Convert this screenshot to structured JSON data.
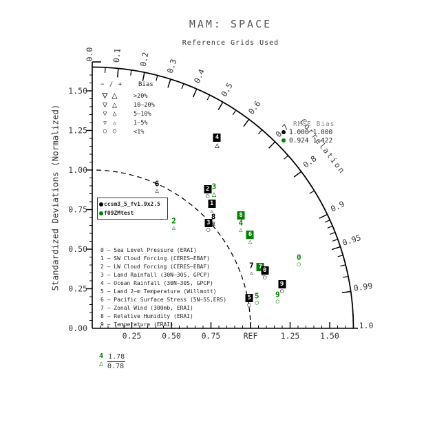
{
  "title": "MAM: SPACE",
  "subtitle": "Reference Grids Used",
  "colors": {
    "black_model": "#000000",
    "green_model": "#008000",
    "axis": "#000000",
    "gray_text": "#333333"
  },
  "y_axis": {
    "label": "Standardized Deviations (Normalized)",
    "tick_labels": [
      "0.00",
      "0.25",
      "0.50",
      "0.75",
      "1.00",
      "1.25",
      "1.50"
    ]
  },
  "x_axis": {
    "tick_labels": [
      "0.25",
      "0.50",
      "0.75",
      "REF",
      "1.25",
      "1.50"
    ]
  },
  "correlation_axis": {
    "label": "Correlation",
    "labels": [
      {
        "v": 0.0,
        "t": "0.0"
      },
      {
        "v": 0.1,
        "t": "0.1"
      },
      {
        "v": 0.2,
        "t": "0.2"
      },
      {
        "v": 0.3,
        "t": "0.3"
      },
      {
        "v": 0.4,
        "t": "0.4"
      },
      {
        "v": 0.5,
        "t": "0.5"
      },
      {
        "v": 0.6,
        "t": "0.6"
      },
      {
        "v": 0.7,
        "t": "0.7"
      },
      {
        "v": 0.8,
        "t": "0.8"
      },
      {
        "v": 0.9,
        "t": "0.9"
      },
      {
        "v": 0.95,
        "t": "0.95"
      },
      {
        "v": 0.99,
        "t": "0.99"
      },
      {
        "v": 1.0,
        "t": "1.0"
      }
    ],
    "minor_ticks": [
      0.05,
      0.15,
      0.25,
      0.35,
      0.45,
      0.55,
      0.65,
      0.75,
      0.85,
      0.91,
      0.92,
      0.93,
      0.94,
      0.96,
      0.97,
      0.98
    ]
  },
  "bias_legend": {
    "header_symbols": "− / +",
    "header_label": "Bias",
    "rows": [
      {
        "label": ">20%",
        "down": "▽",
        "up": "△",
        "size": 14
      },
      {
        "label": "10–20%",
        "down": "▽",
        "up": "△",
        "size": 12
      },
      {
        "label": "5–10%",
        "down": "▽",
        "up": "△",
        "size": 10
      },
      {
        "label": "1–5%",
        "down": "▽",
        "up": "△",
        "size": 8
      },
      {
        "label": "<1%",
        "down": "○",
        "up": "○",
        "size": 9
      }
    ]
  },
  "model_legend": [
    {
      "name": "ccsm3_5_fv1.9x2.5",
      "color": "#000000"
    },
    {
      "name": "f09ZMtest",
      "color": "#008000"
    }
  ],
  "stats": {
    "header": "RMSE  Bias",
    "rows": [
      {
        "rmse": "1.000",
        "bias": "1.000",
        "color": "#000000"
      },
      {
        "rmse": "0.924",
        "bias": "1.422",
        "color": "#008000"
      }
    ]
  },
  "variables": [
    "0 – Sea Level Pressure (ERAI)",
    "1 – SW Cloud Forcing (CERES–EBAF)",
    "2 – LW Cloud Forcing (CERES–EBAF)",
    "3 – Land Rainfall (30N–30S, GPCP)",
    "4 – Ocean Rainfall (30N–30S, GPCP)",
    "5 – Land 2–m Temperature (Willmott)",
    "6 – Pacific Surface Stress (5N–5S,ERS)",
    "7 – Zonal Wind (300mb, ERAI)",
    "8 – Relative Humidity (ERAI)",
    "9 – Temperature (ERAI)"
  ],
  "chart_data": {
    "type": "taylor",
    "axis_max": 1.65,
    "ref_std": 1.0,
    "std_major_ticks": [
      0.25,
      0.5,
      0.75,
      1.0,
      1.25,
      1.5
    ],
    "series": [
      {
        "name": "ccsm3_5_fv1.9x2.5",
        "color": "#000000",
        "points": [
          {
            "var": "0",
            "std": 1.15,
            "corr": 0.948,
            "boxed": true,
            "bias": "circle"
          },
          {
            "var": "1",
            "std": 1.09,
            "corr": 0.693,
            "boxed": true,
            "bias": "tri-up-xs"
          },
          {
            "var": "2",
            "std": 1.14,
            "corr": 0.639,
            "boxed": true,
            "bias": "circle"
          },
          {
            "var": "3",
            "std": 0.99,
            "corr": 0.741,
            "boxed": true,
            "bias": "circle"
          },
          {
            "var": "4",
            "std": 1.44,
            "corr": 0.548,
            "boxed": true,
            "bias": "tri-up-m"
          },
          {
            "var": "5",
            "std": 1.01,
            "corr": 0.982,
            "boxed": true,
            "bias": "circle"
          },
          {
            "var": "6",
            "std": 1.0,
            "corr": 0.409,
            "boxed": false,
            "bias": "tri-up-s"
          },
          {
            "var": "7",
            "std": 1.08,
            "corr": 0.931,
            "boxed": false,
            "bias": "tri-up-xs"
          },
          {
            "var": "8",
            "std": 1.04,
            "corr": 0.736,
            "boxed": false,
            "bias": "tri-both-s"
          },
          {
            "var": "9",
            "std": 1.23,
            "corr": 0.974,
            "boxed": true,
            "bias": "circle"
          }
        ]
      },
      {
        "name": "f09ZMtest",
        "color": "#008000",
        "points": [
          {
            "var": "0",
            "std": 1.38,
            "corr": 0.946,
            "boxed": false,
            "bias": "circle"
          },
          {
            "var": "2",
            "std": 0.85,
            "corr": 0.606,
            "boxed": false,
            "bias": "tri-up-s"
          },
          {
            "var": "3",
            "std": 1.18,
            "corr": 0.652,
            "boxed": false,
            "bias": "tri-up-m"
          },
          {
            "var": "4",
            "std": 1.15,
            "corr": 0.816,
            "boxed": false,
            "bias": "tri-up-s"
          },
          {
            "var": "5",
            "std": 1.06,
            "corr": 0.981,
            "boxed": false,
            "bias": "circle"
          },
          {
            "var": "6",
            "std": 1.16,
            "corr": 0.86,
            "boxed": true,
            "bias": "tri-up-s"
          },
          {
            "var": "7",
            "std": 1.13,
            "corr": 0.94,
            "boxed": true,
            "bias": "tri-up-xs",
            "bias_dx": 4
          },
          {
            "var": "8",
            "std": 1.18,
            "corr": 0.796,
            "boxed": true,
            "bias": "none"
          },
          {
            "var": "9",
            "std": 1.19,
            "corr": 0.984,
            "boxed": false,
            "bias": "circle"
          }
        ]
      }
    ],
    "offplot": {
      "var": "4",
      "series": "f09ZMtest",
      "symbol": "△",
      "std_ratio": "1.78",
      "correlation": "0.78"
    }
  }
}
